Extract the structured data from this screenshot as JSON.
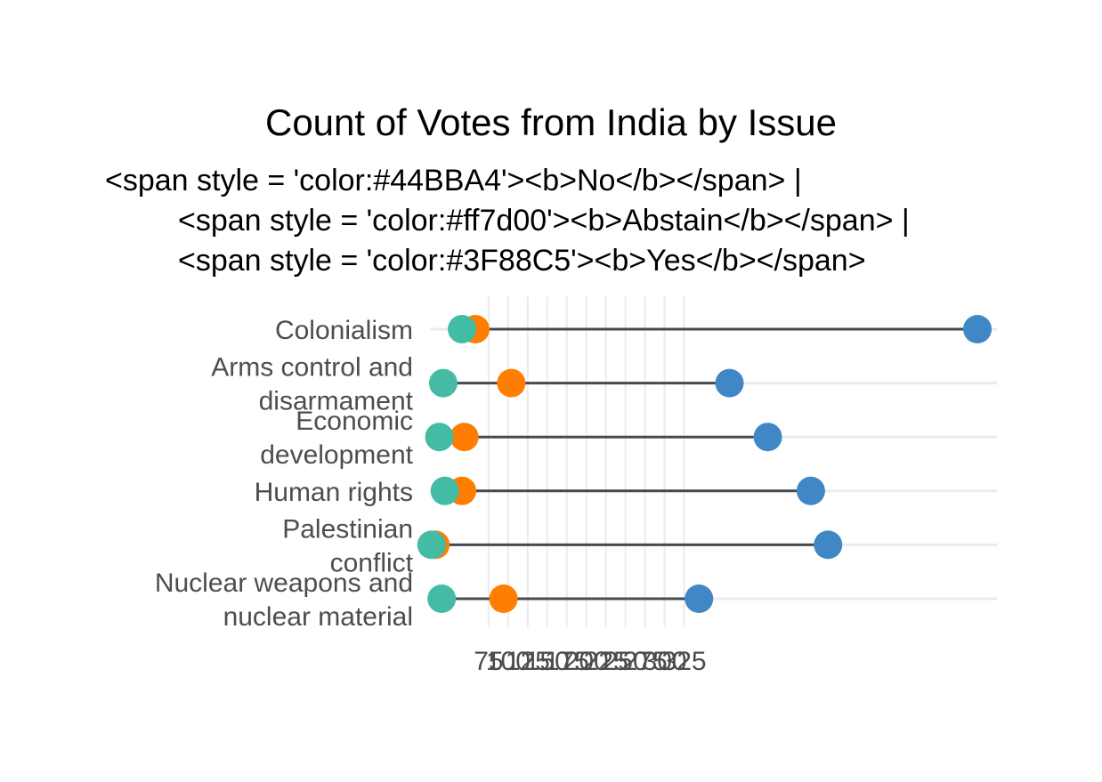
{
  "chart_data": {
    "type": "dumbbell",
    "title": "Count of Votes from India by Issue",
    "subtitle_lines": [
      "<span style = 'color:#44BBA4'><b>No</b></span> |",
      "<span style = 'color:#ff7d00'><b>Abstain</b></span> |",
      "<span style = 'color:#3F88C5'><b>Yes</b></span>"
    ],
    "categories": [
      [
        "Colonialism"
      ],
      [
        "Arms control and",
        "disarmament"
      ],
      [
        "Economic",
        "development"
      ],
      [
        "Human rights"
      ],
      [
        "Palestinian",
        "conflict"
      ],
      [
        "Nuclear weapons and",
        "nuclear material"
      ]
    ],
    "x_ticks": [
      75,
      100,
      125,
      150,
      175,
      200,
      225,
      250,
      275,
      300,
      325
    ],
    "x_tick_labels": [
      "75",
      "100",
      "125",
      "150",
      "175",
      "200",
      "225",
      "250",
      "275",
      "300",
      "325"
    ],
    "xlim": [
      0,
      725
    ],
    "colors": {
      "no": "#44BBA4",
      "abstain": "#ff7d00",
      "yes": "#3F88C5",
      "segment": "#454b52",
      "grid": "#ebebeb"
    },
    "series": [
      {
        "key": "no",
        "values": [
          41,
          17,
          12,
          19,
          2,
          15
        ]
      },
      {
        "key": "abstain",
        "values": [
          58,
          104,
          44,
          41,
          7,
          94
        ]
      },
      {
        "key": "yes",
        "values": [
          700,
          383,
          432,
          487,
          509,
          344
        ]
      }
    ]
  }
}
